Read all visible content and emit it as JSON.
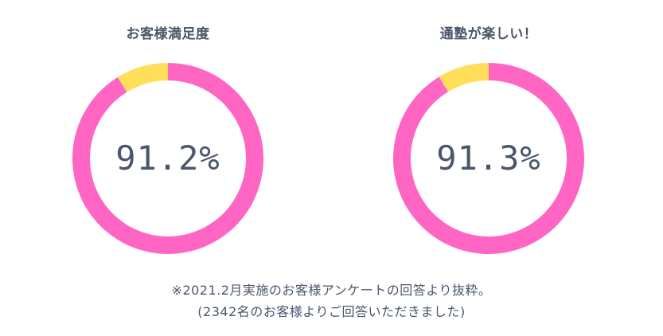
{
  "colors": {
    "satisfied": "#ff66c4",
    "other": "#ffde59",
    "text": "#4b566b"
  },
  "chart_data": [
    {
      "type": "pie",
      "title": "お客様満足度",
      "center_label": "91.2%",
      "values": [
        91.2,
        8.8
      ]
    },
    {
      "type": "pie",
      "title": "通塾が楽しい！",
      "center_label": "91.3%",
      "values": [
        91.3,
        8.7
      ]
    }
  ],
  "footnote": {
    "line1": "※2021.2月実施のお客様アンケートの回答より抜粋。",
    "line2": "(2342名のお客様よりご回答いただきました)"
  }
}
